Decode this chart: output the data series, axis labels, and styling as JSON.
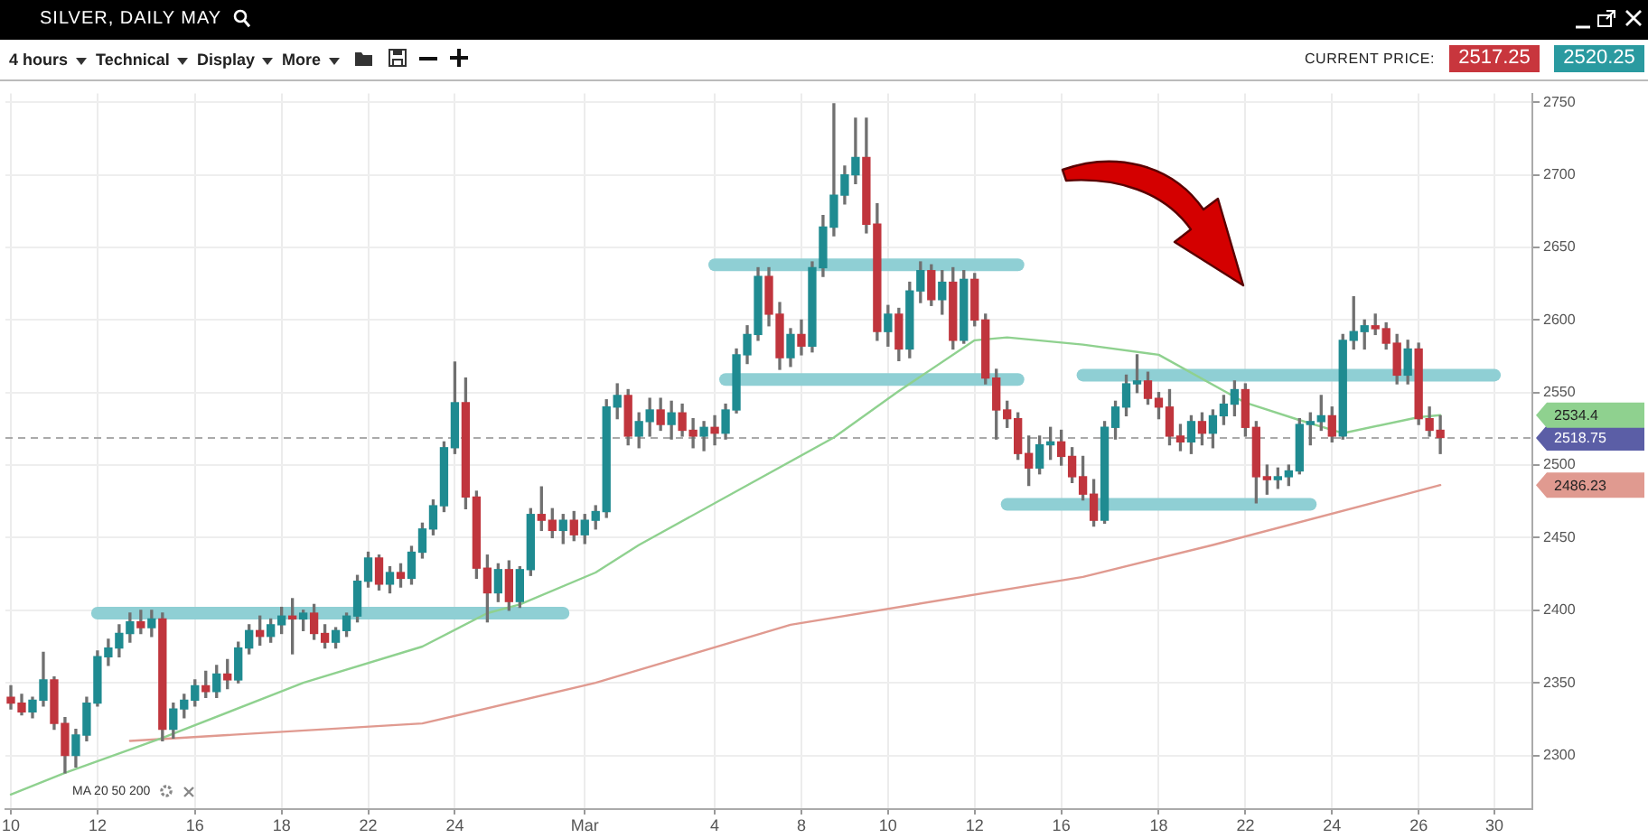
{
  "chart_data": {
    "type": "candlestick",
    "title": "SILVER, DAILY MAY",
    "categories": [
      "10",
      null,
      null,
      null,
      null,
      null,
      null,
      null,
      "12",
      null,
      null,
      null,
      null,
      null,
      null,
      null,
      null,
      "16",
      null,
      null,
      null,
      null,
      null,
      null,
      null,
      "18",
      null,
      null,
      null,
      null,
      null,
      null,
      null,
      "22",
      null,
      null,
      null,
      null,
      null,
      null,
      null,
      "24",
      null,
      null,
      null,
      null,
      null,
      null,
      null,
      null,
      null,
      null,
      null,
      "Mar",
      null,
      null,
      null,
      null,
      null,
      null,
      null,
      null,
      null,
      null,
      null,
      "4",
      null,
      null,
      null,
      null,
      null,
      null,
      null,
      "8",
      null,
      null,
      null,
      null,
      null,
      null,
      null,
      "10",
      null,
      null,
      null,
      null,
      null,
      null,
      null,
      "12",
      null,
      null,
      null,
      null,
      null,
      null,
      null,
      "16",
      null,
      null,
      null,
      null,
      null,
      null,
      null,
      null,
      "18",
      null,
      null,
      null,
      null,
      null,
      null,
      null,
      "22",
      null,
      null,
      null,
      null,
      null,
      null,
      null,
      "24",
      null,
      null,
      null,
      null,
      null,
      null,
      null,
      "26",
      null,
      null,
      null,
      null,
      null,
      null,
      "30",
      null,
      null,
      null
    ],
    "ohlc": [
      [
        2340,
        2348,
        2332,
        2336
      ],
      [
        2336,
        2342,
        2328,
        2330
      ],
      [
        2330,
        2340,
        2326,
        2338
      ],
      [
        2338,
        2371,
        2334,
        2352
      ],
      [
        2352,
        2354,
        2318,
        2322
      ],
      [
        2322,
        2326,
        2288,
        2300
      ],
      [
        2300,
        2318,
        2292,
        2314
      ],
      [
        2314,
        2340,
        2310,
        2336
      ],
      [
        2336,
        2372,
        2334,
        2368
      ],
      [
        2368,
        2380,
        2362,
        2374
      ],
      [
        2374,
        2390,
        2368,
        2384
      ],
      [
        2384,
        2398,
        2378,
        2392
      ],
      [
        2392,
        2400,
        2384,
        2388
      ],
      [
        2388,
        2400,
        2382,
        2394
      ],
      [
        2394,
        2398,
        2310,
        2318
      ],
      [
        2318,
        2336,
        2312,
        2332
      ],
      [
        2332,
        2342,
        2326,
        2338
      ],
      [
        2338,
        2352,
        2334,
        2348
      ],
      [
        2348,
        2358,
        2340,
        2344
      ],
      [
        2344,
        2362,
        2340,
        2356
      ],
      [
        2356,
        2366,
        2346,
        2352
      ],
      [
        2352,
        2378,
        2350,
        2374
      ],
      [
        2374,
        2390,
        2370,
        2386
      ],
      [
        2386,
        2396,
        2376,
        2382
      ],
      [
        2382,
        2394,
        2378,
        2390
      ],
      [
        2390,
        2402,
        2384,
        2396
      ],
      [
        2396,
        2408,
        2370,
        2394
      ],
      [
        2394,
        2400,
        2386,
        2398
      ],
      [
        2398,
        2404,
        2380,
        2384
      ],
      [
        2384,
        2390,
        2374,
        2378
      ],
      [
        2378,
        2388,
        2374,
        2386
      ],
      [
        2386,
        2398,
        2382,
        2396
      ],
      [
        2396,
        2424,
        2392,
        2420
      ],
      [
        2420,
        2440,
        2416,
        2436
      ],
      [
        2436,
        2438,
        2414,
        2418
      ],
      [
        2418,
        2430,
        2412,
        2426
      ],
      [
        2426,
        2432,
        2416,
        2422
      ],
      [
        2422,
        2444,
        2418,
        2440
      ],
      [
        2440,
        2460,
        2436,
        2456
      ],
      [
        2456,
        2476,
        2452,
        2472
      ],
      [
        2472,
        2516,
        2468,
        2512
      ],
      [
        2512,
        2571,
        2508,
        2543
      ],
      [
        2543,
        2560,
        2470,
        2478
      ],
      [
        2478,
        2482,
        2422,
        2429
      ],
      [
        2429,
        2438,
        2392,
        2412
      ],
      [
        2412,
        2432,
        2406,
        2428
      ],
      [
        2428,
        2434,
        2400,
        2406
      ],
      [
        2406,
        2430,
        2402,
        2428
      ],
      [
        2428,
        2470,
        2424,
        2466
      ],
      [
        2466,
        2485,
        2455,
        2462
      ],
      [
        2462,
        2470,
        2450,
        2455
      ],
      [
        2455,
        2466,
        2446,
        2462
      ],
      [
        2462,
        2468,
        2448,
        2452
      ],
      [
        2452,
        2466,
        2446,
        2462
      ],
      [
        2462,
        2472,
        2456,
        2468
      ],
      [
        2468,
        2545,
        2464,
        2540
      ],
      [
        2540,
        2556,
        2532,
        2548
      ],
      [
        2548,
        2552,
        2514,
        2520
      ],
      [
        2520,
        2536,
        2512,
        2530
      ],
      [
        2530,
        2546,
        2520,
        2538
      ],
      [
        2538,
        2546,
        2524,
        2528
      ],
      [
        2528,
        2544,
        2518,
        2536
      ],
      [
        2536,
        2542,
        2520,
        2524
      ],
      [
        2524,
        2532,
        2512,
        2520
      ],
      [
        2520,
        2530,
        2510,
        2526
      ],
      [
        2526,
        2534,
        2514,
        2522
      ],
      [
        2522,
        2542,
        2518,
        2538
      ],
      [
        2538,
        2580,
        2536,
        2576
      ],
      [
        2576,
        2596,
        2570,
        2590
      ],
      [
        2590,
        2636,
        2586,
        2630
      ],
      [
        2630,
        2636,
        2596,
        2604
      ],
      [
        2604,
        2612,
        2566,
        2574
      ],
      [
        2574,
        2594,
        2568,
        2590
      ],
      [
        2590,
        2600,
        2576,
        2582
      ],
      [
        2582,
        2640,
        2578,
        2636
      ],
      [
        2636,
        2672,
        2630,
        2664
      ],
      [
        2664,
        2749,
        2658,
        2686
      ],
      [
        2686,
        2706,
        2680,
        2700
      ],
      [
        2700,
        2739,
        2694,
        2712
      ],
      [
        2712,
        2739,
        2660,
        2666
      ],
      [
        2666,
        2680,
        2586,
        2592
      ],
      [
        2592,
        2610,
        2582,
        2604
      ],
      [
        2604,
        2608,
        2572,
        2580
      ],
      [
        2580,
        2626,
        2574,
        2620
      ],
      [
        2620,
        2640,
        2612,
        2634
      ],
      [
        2634,
        2638,
        2610,
        2614
      ],
      [
        2614,
        2634,
        2604,
        2626
      ],
      [
        2626,
        2636,
        2580,
        2586
      ],
      [
        2586,
        2634,
        2584,
        2628
      ],
      [
        2628,
        2632,
        2596,
        2600
      ],
      [
        2600,
        2604,
        2556,
        2560
      ],
      [
        2560,
        2566,
        2518,
        2538
      ],
      [
        2538,
        2544,
        2526,
        2532
      ],
      [
        2532,
        2536,
        2504,
        2508
      ],
      [
        2508,
        2520,
        2486,
        2498
      ],
      [
        2498,
        2520,
        2494,
        2514
      ],
      [
        2514,
        2526,
        2504,
        2516
      ],
      [
        2516,
        2524,
        2500,
        2506
      ],
      [
        2506,
        2512,
        2488,
        2492
      ],
      [
        2492,
        2506,
        2476,
        2480
      ],
      [
        2480,
        2490,
        2458,
        2462
      ],
      [
        2462,
        2530,
        2460,
        2526
      ],
      [
        2526,
        2544,
        2518,
        2540
      ],
      [
        2540,
        2562,
        2534,
        2556
      ],
      [
        2556,
        2576,
        2550,
        2558
      ],
      [
        2558,
        2564,
        2542,
        2546
      ],
      [
        2546,
        2550,
        2532,
        2540
      ],
      [
        2540,
        2552,
        2514,
        2520
      ],
      [
        2520,
        2528,
        2510,
        2516
      ],
      [
        2516,
        2534,
        2508,
        2530
      ],
      [
        2530,
        2536,
        2514,
        2522
      ],
      [
        2522,
        2538,
        2512,
        2534
      ],
      [
        2534,
        2548,
        2528,
        2542
      ],
      [
        2542,
        2558,
        2534,
        2552
      ],
      [
        2552,
        2556,
        2520,
        2526
      ],
      [
        2526,
        2530,
        2474,
        2492
      ],
      [
        2492,
        2500,
        2480,
        2490
      ],
      [
        2490,
        2498,
        2484,
        2492
      ],
      [
        2492,
        2500,
        2486,
        2496
      ],
      [
        2496,
        2532,
        2494,
        2528
      ],
      [
        2528,
        2536,
        2514,
        2530
      ],
      [
        2530,
        2548,
        2524,
        2534
      ],
      [
        2534,
        2540,
        2516,
        2520
      ],
      [
        2520,
        2590,
        2518,
        2586
      ],
      [
        2586,
        2616,
        2580,
        2592
      ],
      [
        2592,
        2600,
        2580,
        2596
      ],
      [
        2596,
        2604,
        2590,
        2594
      ],
      [
        2594,
        2598,
        2580,
        2584
      ],
      [
        2584,
        2590,
        2556,
        2562
      ],
      [
        2562,
        2586,
        2556,
        2580
      ],
      [
        2580,
        2584,
        2528,
        2532
      ],
      [
        2532,
        2540,
        2520,
        2524
      ],
      [
        2524,
        2534,
        2508,
        2519
      ],
      null,
      null,
      null,
      null,
      null,
      null,
      null,
      null
    ],
    "series": [
      {
        "type": "line",
        "color": "#8fd18f",
        "values": [
          2273,
          null,
          null,
          null,
          null,
          2288,
          null,
          null,
          null,
          null,
          null,
          null,
          null,
          null,
          2312,
          null,
          null,
          null,
          null,
          null,
          null,
          null,
          null,
          null,
          null,
          null,
          null,
          2350,
          null,
          null,
          null,
          null,
          null,
          null,
          null,
          null,
          null,
          null,
          2375,
          null,
          null,
          null,
          null,
          null,
          2398,
          null,
          null,
          2404,
          null,
          null,
          null,
          null,
          null,
          null,
          2426,
          null,
          null,
          null,
          2445,
          null,
          null,
          null,
          null,
          null,
          null,
          null,
          null,
          null,
          null,
          null,
          null,
          null,
          null,
          null,
          null,
          null,
          2519,
          null,
          null,
          null,
          null,
          null,
          2551,
          null,
          null,
          null,
          null,
          null,
          null,
          2586,
          null,
          null,
          2588,
          null,
          null,
          null,
          null,
          null,
          null,
          2583,
          null,
          null,
          null,
          null,
          null,
          null,
          2576,
          null,
          null,
          null,
          null,
          null,
          null,
          null,
          2543,
          null,
          null,
          null,
          null,
          2531,
          null,
          null,
          null,
          2522,
          null,
          null,
          null,
          null,
          null,
          null,
          2533,
          null,
          2534.4,
          null,
          null,
          null,
          null,
          null,
          null,
          null,
          null
        ]
      },
      {
        "type": "line",
        "color": "#e09a90",
        "values": [
          null,
          null,
          null,
          null,
          null,
          null,
          null,
          null,
          null,
          null,
          null,
          2310,
          null,
          null,
          null,
          null,
          null,
          null,
          null,
          null,
          null,
          null,
          null,
          null,
          null,
          null,
          null,
          null,
          null,
          null,
          null,
          null,
          null,
          null,
          null,
          null,
          null,
          null,
          2322,
          null,
          null,
          null,
          null,
          null,
          null,
          null,
          null,
          null,
          null,
          null,
          null,
          null,
          null,
          null,
          2350,
          null,
          null,
          null,
          null,
          null,
          null,
          null,
          null,
          null,
          null,
          null,
          null,
          null,
          null,
          null,
          null,
          null,
          2390,
          null,
          null,
          null,
          null,
          null,
          null,
          null,
          null,
          null,
          null,
          null,
          null,
          null,
          null,
          null,
          null,
          null,
          null,
          null,
          null,
          null,
          null,
          null,
          null,
          null,
          null,
          2423,
          null,
          null,
          null,
          null,
          null,
          null,
          null,
          null,
          null,
          null,
          null,
          2445,
          null,
          null,
          null,
          null,
          null,
          null,
          null,
          null,
          null,
          null,
          null,
          null,
          null,
          null,
          null,
          null,
          null,
          null,
          null,
          null,
          2486.23,
          null,
          null,
          null,
          null,
          null,
          null,
          null,
          null
        ]
      },
      {
        "type": "line",
        "color": "#8fcfd4",
        "values": [
          null,
          null,
          null,
          null,
          null,
          null,
          null,
          null,
          2398,
          null,
          null,
          null,
          null,
          null,
          null,
          null,
          null,
          null,
          null,
          null,
          null,
          null,
          null,
          null,
          null,
          null,
          null,
          null,
          null,
          null,
          null,
          null,
          null,
          null,
          null,
          null,
          null,
          null,
          null,
          null,
          null,
          null,
          null,
          null,
          null,
          null,
          null,
          null,
          null,
          null,
          null,
          2398,
          null,
          null,
          null,
          null,
          null,
          null,
          null,
          null,
          null,
          null,
          null,
          null,
          null,
          null,
          null,
          null,
          null,
          null,
          null,
          null,
          null,
          null,
          null,
          null,
          null,
          null,
          null,
          null,
          null,
          null,
          null,
          null,
          null,
          null,
          null,
          null,
          null,
          null,
          null,
          null,
          null,
          null,
          null,
          null,
          null,
          null,
          null,
          null,
          null,
          null,
          null,
          null,
          null,
          null,
          null,
          null,
          null,
          null,
          null,
          null,
          null,
          null,
          null,
          null,
          null,
          null,
          null,
          null,
          null,
          null,
          null,
          null,
          null,
          null,
          null,
          null,
          null,
          null,
          null,
          null,
          null,
          null,
          null,
          null,
          null,
          null,
          null,
          null,
          null
        ]
      },
      {
        "type": "line",
        "color": "#8fcfd4",
        "values": [
          null,
          null,
          null,
          null,
          null,
          null,
          null,
          null,
          null,
          null,
          null,
          null,
          null,
          null,
          null,
          null,
          null,
          null,
          null,
          null,
          null,
          null,
          null,
          null,
          null,
          null,
          null,
          null,
          null,
          null,
          null,
          null,
          null,
          null,
          null,
          null,
          null,
          null,
          null,
          null,
          null,
          null,
          null,
          null,
          null,
          null,
          null,
          null,
          null,
          null,
          null,
          null,
          null,
          null,
          null,
          null,
          null,
          null,
          null,
          null,
          null,
          null,
          null,
          null,
          null,
          2638,
          null,
          null,
          null,
          null,
          null,
          null,
          null,
          null,
          null,
          null,
          null,
          null,
          null,
          null,
          null,
          null,
          null,
          null,
          null,
          null,
          null,
          null,
          null,
          null,
          null,
          null,
          null,
          2638,
          null,
          null,
          null,
          null,
          null,
          null,
          null,
          null,
          null,
          null,
          null,
          null,
          null,
          null,
          null,
          null,
          null,
          null,
          null,
          null,
          null,
          null,
          null,
          null,
          null,
          null,
          null,
          null,
          null,
          null,
          null,
          null,
          null,
          null,
          null,
          null,
          null,
          null,
          null,
          null,
          null,
          null,
          null,
          null,
          null,
          null,
          null
        ]
      },
      {
        "type": "line",
        "color": "#8fcfd4",
        "values": [
          null,
          null,
          null,
          null,
          null,
          null,
          null,
          null,
          null,
          null,
          null,
          null,
          null,
          null,
          null,
          null,
          null,
          null,
          null,
          null,
          null,
          null,
          null,
          null,
          null,
          null,
          null,
          null,
          null,
          null,
          null,
          null,
          null,
          null,
          null,
          null,
          null,
          null,
          null,
          null,
          null,
          null,
          null,
          null,
          null,
          null,
          null,
          null,
          null,
          null,
          null,
          null,
          null,
          null,
          null,
          null,
          null,
          null,
          null,
          null,
          null,
          null,
          null,
          null,
          null,
          null,
          2559,
          null,
          null,
          null,
          null,
          null,
          null,
          null,
          null,
          null,
          null,
          null,
          null,
          null,
          null,
          null,
          null,
          null,
          null,
          null,
          null,
          null,
          null,
          null,
          null,
          null,
          null,
          2559,
          null,
          null,
          null,
          null,
          null,
          null,
          null,
          null,
          null,
          null,
          null,
          null,
          null,
          null,
          null,
          null,
          null,
          null,
          null,
          null,
          null,
          null,
          null,
          null,
          null,
          null,
          null,
          null,
          null,
          null,
          null,
          null,
          null,
          null,
          null,
          null,
          null,
          null,
          null,
          null,
          null,
          null,
          null,
          null,
          null,
          null,
          null
        ]
      },
      {
        "type": "line",
        "color": "#8fcfd4",
        "values": [
          null,
          null,
          null,
          null,
          null,
          null,
          null,
          null,
          null,
          null,
          null,
          null,
          null,
          null,
          null,
          null,
          null,
          null,
          null,
          null,
          null,
          null,
          null,
          null,
          null,
          null,
          null,
          null,
          null,
          null,
          null,
          null,
          null,
          null,
          null,
          null,
          null,
          null,
          null,
          null,
          null,
          null,
          null,
          null,
          null,
          null,
          null,
          null,
          null,
          null,
          null,
          null,
          null,
          null,
          null,
          null,
          null,
          null,
          null,
          null,
          null,
          null,
          null,
          null,
          null,
          null,
          null,
          null,
          null,
          null,
          null,
          null,
          null,
          null,
          null,
          null,
          null,
          null,
          null,
          null,
          null,
          null,
          null,
          null,
          null,
          null,
          null,
          null,
          null,
          null,
          null,
          null,
          2473,
          null,
          null,
          null,
          null,
          null,
          null,
          null,
          null,
          null,
          null,
          null,
          null,
          null,
          null,
          null,
          null,
          null,
          null,
          null,
          null,
          null,
          null,
          null,
          null,
          null,
          null,
          null,
          2473,
          null,
          null,
          null,
          null,
          null,
          null,
          null,
          null,
          null,
          null,
          null,
          null,
          null,
          null,
          null,
          null,
          null,
          null,
          null,
          null
        ]
      },
      {
        "type": "line",
        "color": "#8fcfd4",
        "values": [
          null,
          null,
          null,
          null,
          null,
          null,
          null,
          null,
          null,
          null,
          null,
          null,
          null,
          null,
          null,
          null,
          null,
          null,
          null,
          null,
          null,
          null,
          null,
          null,
          null,
          null,
          null,
          null,
          null,
          null,
          null,
          null,
          null,
          null,
          null,
          null,
          null,
          null,
          null,
          null,
          null,
          null,
          null,
          null,
          null,
          null,
          null,
          null,
          null,
          null,
          null,
          null,
          null,
          null,
          null,
          null,
          null,
          null,
          null,
          null,
          null,
          null,
          null,
          null,
          null,
          null,
          null,
          null,
          null,
          null,
          null,
          null,
          null,
          null,
          null,
          null,
          null,
          null,
          null,
          null,
          null,
          null,
          null,
          null,
          null,
          null,
          null,
          null,
          null,
          null,
          null,
          null,
          null,
          null,
          null,
          null,
          null,
          null,
          null,
          2562,
          null,
          null,
          null,
          null,
          null,
          null,
          null,
          null,
          null,
          null,
          null,
          null,
          null,
          null,
          null,
          null,
          null,
          null,
          null,
          null,
          null,
          null,
          null,
          null,
          null,
          null,
          null,
          null,
          null,
          null,
          null,
          null,
          null,
          null,
          null,
          null,
          null,
          2562,
          null,
          null,
          null
        ]
      }
    ],
    "ylim": [
      2263,
      2756
    ],
    "yticks": [
      2300,
      2350,
      2400,
      2450,
      2500,
      2550,
      2600,
      2650,
      2700,
      2750
    ],
    "grid": true,
    "marker": "none",
    "ref_lines": [
      {
        "axis": "y",
        "value": 2518.75,
        "label": "2518.75",
        "color": "#aaaaaa",
        "line_style": "dashed"
      }
    ],
    "annotations": [
      "4 hours",
      "Technical",
      "Display",
      "More",
      "CURRENT PRICE:",
      "2517.25",
      "2520.25",
      "MA 20 50 200",
      "2534.4",
      "2486.23"
    ]
  }
}
